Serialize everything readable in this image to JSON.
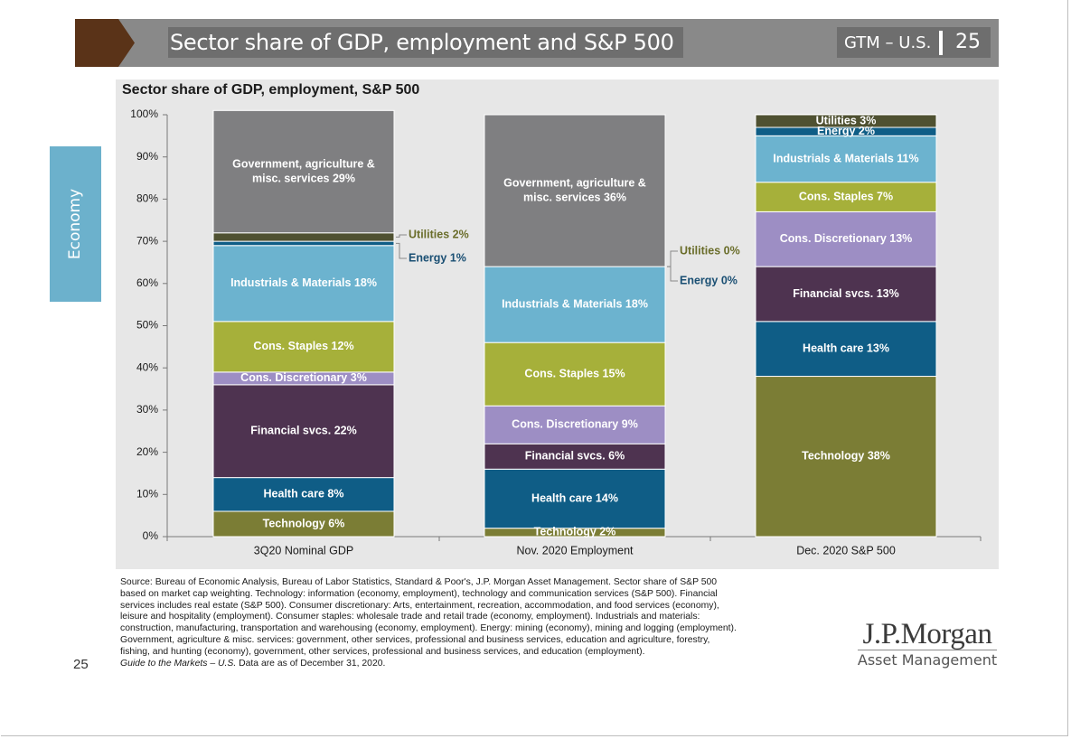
{
  "header": {
    "title": "Sector share of GDP, employment and S&P 500",
    "gtm_label": "GTM – U.S.",
    "page": "25"
  },
  "side_tab": {
    "label": "Economy"
  },
  "colors": {
    "header_bar": "#898989",
    "header_box": "#6e6e6e",
    "chevron": "#5a3318",
    "side_tab": "#6cb1cc",
    "chart_panel": "#e7e7e7"
  },
  "chart_data": {
    "type": "bar",
    "stacked": true,
    "title": "Sector share of GDP, employment, S&P 500",
    "ylim": [
      0,
      100
    ],
    "yticks": [
      "0%",
      "10%",
      "20%",
      "30%",
      "40%",
      "50%",
      "60%",
      "70%",
      "80%",
      "90%",
      "100%"
    ],
    "categories": [
      "3Q20 Nominal GDP",
      "Nov. 2020 Employment",
      "Dec. 2020 S&P 500"
    ],
    "series": [
      {
        "name": "Technology",
        "color": "#7b7d35",
        "values": [
          6,
          2,
          38
        ],
        "labels": [
          "Technology 6%",
          "Technology 2%",
          "Technology 38%"
        ]
      },
      {
        "name": "Health care",
        "color": "#0f5d86",
        "values": [
          8,
          14,
          13
        ],
        "labels": [
          "Health care 8%",
          "Health care 14%",
          "Health care 13%"
        ]
      },
      {
        "name": "Financial svcs.",
        "color": "#4e3350",
        "values": [
          22,
          6,
          13
        ],
        "labels": [
          "Financial svcs. 22%",
          "Financial svcs. 6%",
          "Financial svcs. 13%"
        ]
      },
      {
        "name": "Cons. Discretionary",
        "color": "#9d8ec4",
        "values": [
          3,
          9,
          13
        ],
        "labels": [
          "Cons. Discretionary 3%",
          "Cons. Discretionary 9%",
          "Cons. Discretionary 13%"
        ]
      },
      {
        "name": "Cons. Staples",
        "color": "#a6b03a",
        "values": [
          12,
          15,
          7
        ],
        "labels": [
          "Cons. Staples 12%",
          "Cons. Staples 15%",
          "Cons. Staples 7%"
        ]
      },
      {
        "name": "Industrials & Materials",
        "color": "#6cb3cf",
        "values": [
          18,
          18,
          11
        ],
        "labels": [
          "Industrials & Materials 18%",
          "Industrials & Materials 18%",
          "Industrials & Materials 11%"
        ]
      },
      {
        "name": "Energy",
        "color": "#0f5d86",
        "values": [
          1,
          0,
          2
        ],
        "labels": [
          "Energy 1%",
          "Energy 0%",
          "Energy 2%"
        ]
      },
      {
        "name": "Utilities",
        "color": "#4f5131",
        "values": [
          2,
          0,
          3
        ],
        "labels": [
          "Utilities 2%",
          "Utilities 0%",
          "Utilities 3%"
        ]
      },
      {
        "name": "Government, agriculture & misc. services",
        "color": "#7f7f81",
        "values": [
          29,
          36,
          0
        ],
        "labels": [
          "Government, agriculture & misc. services 29%",
          "Government, agriculture & misc. services 36%",
          ""
        ]
      }
    ],
    "callouts": [
      {
        "bar": 0,
        "series": "Utilities",
        "text": "Utilities 2%",
        "color": "#6a6d2a"
      },
      {
        "bar": 0,
        "series": "Energy",
        "text": "Energy 1%",
        "color": "#1a4f73"
      },
      {
        "bar": 1,
        "series": "Utilities",
        "text": "Utilities 0%",
        "color": "#6a6d2a"
      },
      {
        "bar": 1,
        "series": "Energy",
        "text": "Energy 0%",
        "color": "#1a4f73"
      }
    ]
  },
  "source_note": {
    "lines": [
      "Source: Bureau of Economic Analysis, Bureau of Labor Statistics, Standard & Poor's, J.P. Morgan Asset Management. Sector share of S&P 500",
      "based on market cap weighting. Technology: information (economy, employment), technology and communication services (S&P 500). Financial",
      "services includes real estate (S&P 500). Consumer discretionary: Arts, entertainment, recreation, accommodation, and food services (economy),",
      "leisure  and hospitality (employment). Consumer staples: wholesale trade and retail trade (economy, employment). Industrials and materials:",
      "construction, manufacturing, transportation and warehousing (economy, employment). Energy:  mining (economy), mining and logging (employment).",
      "Government, agriculture & misc. services: government, other services, professional and business services, education and agriculture, forestry,",
      "fishing, and hunting (economy), government, other services, professional and business services, and education (employment)."
    ],
    "last_line_italic": "Guide to the Markets – U.S.",
    "last_line_rest": " Data are as of December 31, 2020."
  },
  "footer": {
    "page_number": "25",
    "logo_name": "J.P.Morgan",
    "logo_sub": "Asset Management"
  }
}
